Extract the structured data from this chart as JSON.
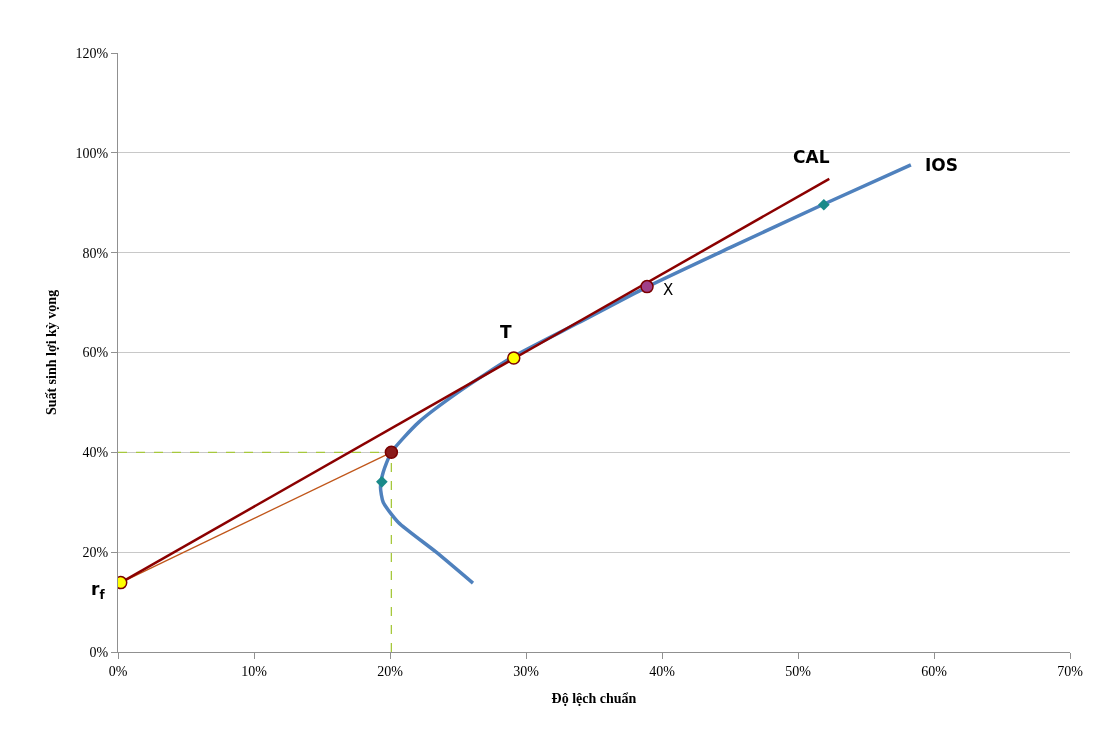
{
  "chart_data": {
    "type": "line",
    "xlabel": "Độ lệch chuẩn",
    "ylabel": "Suất sinh lợi kỳ vọng",
    "xlim": [
      0,
      70
    ],
    "ylim": [
      0,
      120
    ],
    "xticks": [
      {
        "value": 0,
        "label": "0%"
      },
      {
        "value": 10,
        "label": "10%"
      },
      {
        "value": 20,
        "label": "20%"
      },
      {
        "value": 30,
        "label": "30%"
      },
      {
        "value": 40,
        "label": "40%"
      },
      {
        "value": 50,
        "label": "50%"
      },
      {
        "value": 60,
        "label": "60%"
      },
      {
        "value": 70,
        "label": "70%"
      }
    ],
    "yticks": [
      {
        "value": 0,
        "label": "0%"
      },
      {
        "value": 20,
        "label": "20%"
      },
      {
        "value": 40,
        "label": "40%"
      },
      {
        "value": 60,
        "label": "60%"
      },
      {
        "value": 80,
        "label": "80%"
      },
      {
        "value": 100,
        "label": "100%"
      },
      {
        "value": 120,
        "label": "120%"
      }
    ],
    "grid": "y",
    "series": [
      {
        "type": "line",
        "color": "#a6c83c",
        "line_style": "dashed",
        "x": [
          0,
          20.1
        ],
        "values": [
          40,
          40
        ]
      },
      {
        "type": "line",
        "color": "#a6c83c",
        "line_style": "dashed",
        "x": [
          20.1,
          20.1
        ],
        "values": [
          0,
          40
        ]
      },
      {
        "type": "line",
        "color": "#4f81bd",
        "x": [
          26.1,
          23.4,
          20.6,
          19.5,
          19.3,
          19.5,
          20.1,
          22.1,
          25.0,
          28.9,
          33.9,
          38.8,
          45.0,
          51.8,
          58.3
        ],
        "values": [
          13.8,
          20,
          26,
          30,
          33,
          36,
          40,
          46,
          52,
          58.9,
          66,
          73,
          81,
          89.6,
          97.6
        ]
      },
      {
        "type": "line",
        "color": "#c0561a",
        "x": [
          0.2,
          20.1
        ],
        "values": [
          13.9,
          40
        ]
      },
      {
        "type": "line",
        "color": "#8b0000",
        "x": [
          0.2,
          52.3
        ],
        "values": [
          13.9,
          94.8
        ]
      },
      {
        "type": "scatter",
        "marker": "circle",
        "color": "#ffff00",
        "x": [
          0.2
        ],
        "values": [
          13.9
        ]
      },
      {
        "type": "scatter",
        "marker": "circle",
        "color": "#8b1a1a",
        "x": [
          20.1
        ],
        "values": [
          40
        ]
      },
      {
        "type": "scatter",
        "marker": "circle",
        "color": "#ffff00",
        "x": [
          29.1
        ],
        "values": [
          58.9
        ]
      },
      {
        "type": "scatter",
        "marker": "circle",
        "color": "#a0408a",
        "x": [
          38.9
        ],
        "values": [
          73.2
        ]
      },
      {
        "type": "scatter",
        "marker": "diamond",
        "color": "#1a8a8a",
        "x": [
          19.4
        ],
        "values": [
          34.1
        ]
      },
      {
        "type": "scatter",
        "marker": "diamond",
        "color": "#1a8a8a",
        "x": [
          51.9
        ],
        "values": [
          89.6
        ]
      }
    ],
    "annotations": [
      {
        "text": "CAL",
        "x": 52.3,
        "y": 94.8
      },
      {
        "text": "IOS",
        "x": 58.3,
        "y": 97.6
      },
      {
        "text": "T",
        "x": 29.1,
        "y": 58.9
      },
      {
        "text": "X",
        "x": 38.9,
        "y": 73.2
      },
      {
        "text": "r$_{f}$",
        "x": 0.2,
        "y": 13.9
      }
    ]
  }
}
